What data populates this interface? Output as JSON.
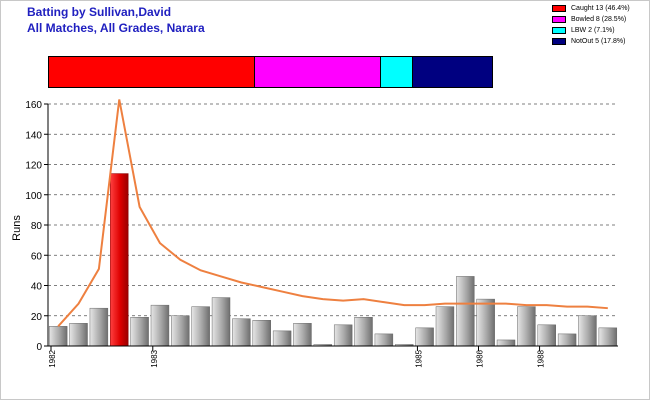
{
  "header": {
    "title_line1": "Batting by Sullivan,David",
    "title_line2": "All Matches, All Grades, Narara"
  },
  "legend": [
    {
      "label": "Caught 13 (46.4%)",
      "color": "#ff0000"
    },
    {
      "label": "Bowled 8 (28.5%)",
      "color": "#ff00ff"
    },
    {
      "label": "LBW 2 (7.1%)",
      "color": "#00ffff"
    },
    {
      "label": "NotOut 5 (17.8%)",
      "color": "#000080"
    }
  ],
  "dismissals": [
    {
      "name": "Caught",
      "count": 13,
      "percent": 46.4,
      "color": "#ff0000"
    },
    {
      "name": "Bowled",
      "count": 8,
      "percent": 28.5,
      "color": "#ff00ff"
    },
    {
      "name": "LBW",
      "count": 2,
      "percent": 7.1,
      "color": "#00ffff"
    },
    {
      "name": "NotOut",
      "count": 5,
      "percent": 17.8,
      "color": "#000080"
    }
  ],
  "chart_data": {
    "type": "bar",
    "title": "",
    "xlabel": "",
    "ylabel": "Runs",
    "ylim": [
      0,
      160
    ],
    "yticks": [
      0,
      20,
      40,
      60,
      80,
      100,
      120,
      140,
      160
    ],
    "grid": true,
    "highlight_color": "#dd0000",
    "bar_color": "#a0a0a0",
    "line_color": "#ee8040",
    "values": [
      13,
      15,
      25,
      114,
      19,
      27,
      20,
      26,
      32,
      18,
      17,
      10,
      15,
      1,
      14,
      19,
      8,
      1,
      12,
      26,
      46,
      31,
      4,
      26,
      14,
      8,
      20,
      12
    ],
    "highlight_index": 3,
    "year_labels": [
      {
        "index": 0,
        "label": "1982"
      },
      {
        "index": 5,
        "label": "1983"
      },
      {
        "index": 18,
        "label": "1985"
      },
      {
        "index": 21,
        "label": "1986"
      },
      {
        "index": 24,
        "label": "1988"
      }
    ],
    "series": [
      {
        "name": "",
        "type": "line",
        "values": [
          13,
          28,
          51,
          163,
          92,
          68,
          57,
          50,
          46,
          42,
          39,
          36,
          33,
          31,
          30,
          31,
          29,
          27,
          27,
          28,
          28,
          28,
          28,
          27,
          27,
          26,
          26,
          25
        ]
      }
    ]
  }
}
